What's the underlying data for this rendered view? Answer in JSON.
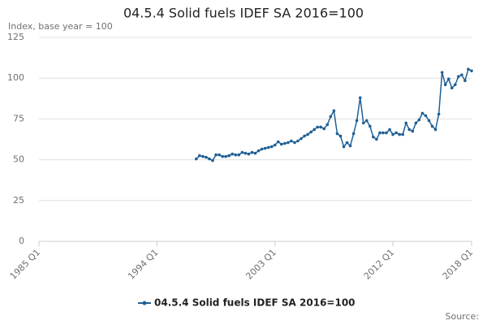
{
  "chart_data": {
    "type": "line",
    "title": "04.5.4 Solid fuels IDEF SA 2016=100",
    "subtitle": "Index, base year = 100",
    "source": "Source:",
    "x": [
      "1997 Q1",
      "1997 Q2",
      "1997 Q3",
      "1997 Q4",
      "1998 Q1",
      "1998 Q2",
      "1998 Q3",
      "1998 Q4",
      "1999 Q1",
      "1999 Q2",
      "1999 Q3",
      "1999 Q4",
      "2000 Q1",
      "2000 Q2",
      "2000 Q3",
      "2000 Q4",
      "2001 Q1",
      "2001 Q2",
      "2001 Q3",
      "2001 Q4",
      "2002 Q1",
      "2002 Q2",
      "2002 Q3",
      "2002 Q4",
      "2003 Q1",
      "2003 Q2",
      "2003 Q3",
      "2003 Q4",
      "2004 Q1",
      "2004 Q2",
      "2004 Q3",
      "2004 Q4",
      "2005 Q1",
      "2005 Q2",
      "2005 Q3",
      "2005 Q4",
      "2006 Q1",
      "2006 Q2",
      "2006 Q3",
      "2006 Q4",
      "2007 Q1",
      "2007 Q2",
      "2007 Q3",
      "2007 Q4",
      "2008 Q1",
      "2008 Q2",
      "2008 Q3",
      "2008 Q4",
      "2009 Q1",
      "2009 Q2",
      "2009 Q3",
      "2009 Q4",
      "2010 Q1",
      "2010 Q2",
      "2010 Q3",
      "2010 Q4",
      "2011 Q1",
      "2011 Q2",
      "2011 Q3",
      "2011 Q4",
      "2012 Q1",
      "2012 Q2",
      "2012 Q3",
      "2012 Q4",
      "2013 Q1",
      "2013 Q2",
      "2013 Q3",
      "2013 Q4",
      "2014 Q1",
      "2014 Q2",
      "2014 Q3",
      "2014 Q4",
      "2015 Q1",
      "2015 Q2",
      "2015 Q3",
      "2015 Q4",
      "2016 Q1",
      "2016 Q2",
      "2016 Q3",
      "2016 Q4",
      "2017 Q1",
      "2017 Q2",
      "2017 Q3",
      "2017 Q4",
      "2018 Q1"
    ],
    "series": [
      {
        "name": "04.5.4 Solid fuels IDEF SA 2016=100",
        "color": "#206095",
        "values": [
          50.5,
          52.5,
          52,
          51.5,
          50.5,
          49.5,
          53,
          53,
          52,
          52,
          52.5,
          53.5,
          53,
          53,
          54.5,
          54,
          53.5,
          54.5,
          54,
          55.5,
          56.5,
          57,
          57.5,
          58,
          59,
          61,
          59.5,
          60,
          60.5,
          61.5,
          60.5,
          61.5,
          63,
          64.5,
          65.5,
          67,
          68.5,
          70,
          70,
          69,
          71.5,
          76.5,
          80,
          66,
          64.5,
          58,
          60.5,
          58.5,
          66,
          74,
          88,
          72.5,
          74,
          70.5,
          64,
          62.5,
          66.5,
          66.5,
          66.5,
          68.5,
          65.5,
          66.5,
          65.5,
          65.5,
          72.5,
          68.5,
          67.5,
          72.5,
          74.5,
          78.5,
          77,
          74,
          70.5,
          68.5,
          78,
          103.5,
          96,
          99.5,
          94,
          96,
          101,
          102,
          98.5,
          105.5,
          104.5
        ]
      }
    ],
    "xlim": [
      "1985 Q1",
      "2018 Q1"
    ],
    "xticks": [
      "1985 Q1",
      "1994 Q1",
      "2003 Q1",
      "2012 Q1",
      "2018 Q1"
    ],
    "ylim": [
      0,
      125
    ],
    "yticks": [
      0,
      25,
      50,
      75,
      100,
      125
    ],
    "grid": true
  }
}
